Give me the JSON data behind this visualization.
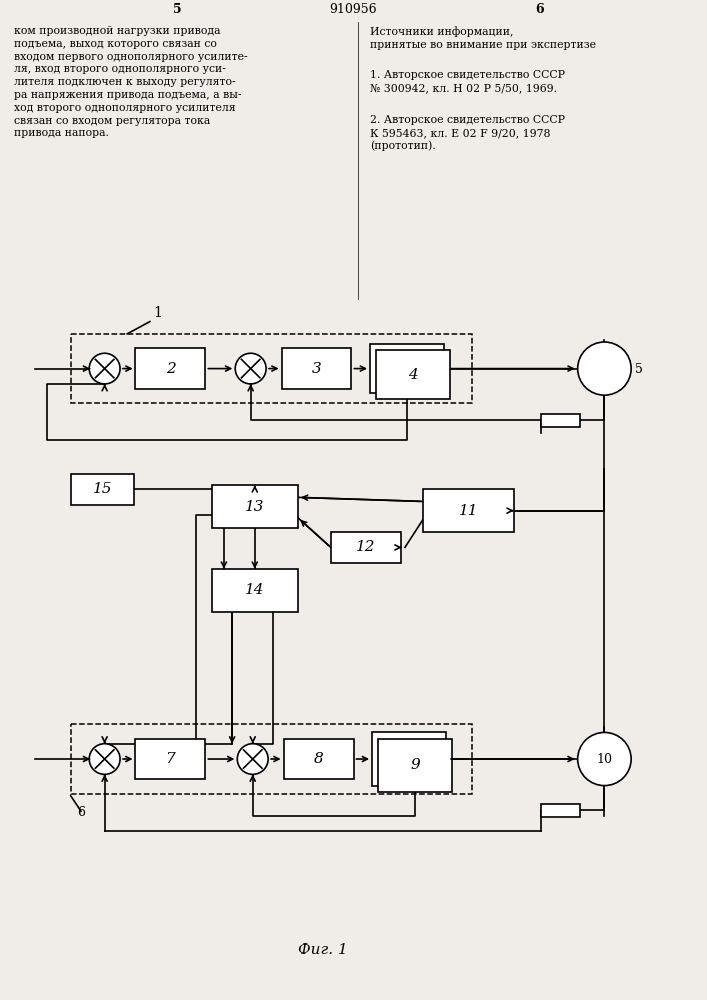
{
  "bg_color": "#f0ede8",
  "page_left": "5",
  "page_center": "910956",
  "page_right": "6",
  "left_col_text": "ком производной нагрузки привода\nподъема, выход которого связан со\nвходом первого однополярного усилите-\nля, вход второго однополярного уси-\nлителя подключен к выходу регулято-\nра напряжения привода подъема, а вы-\nход второго однополярного усилителя\nсвязан со входом регулятора тока\nпривода напора.",
  "right_col_header": "Источники информации,\nпринятые во внимание при экспертизе",
  "right_col_ref1": "1. Авторское свидетельство СССР\n№ 300942, кл. Н 02 Р 5/50, 1969.",
  "right_col_ref2": "2. Авторское свидетельство СССР\nК 595463, кл. Е 02 F 9/20, 1978\n(прототип).",
  "fig_caption": "Фиг. 1",
  "lw": 1.2,
  "lw_dash": 1.1
}
